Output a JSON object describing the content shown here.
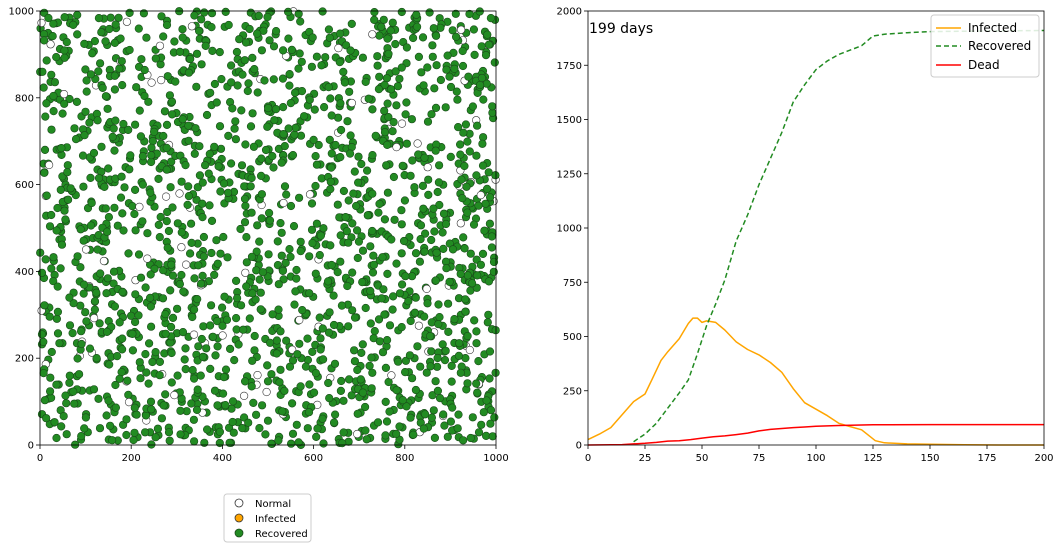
{
  "chart_data": [
    {
      "type": "scatter",
      "xlim": [
        0,
        1000
      ],
      "ylim": [
        0,
        1000
      ],
      "xticks": [
        0,
        200,
        400,
        600,
        800,
        1000
      ],
      "yticks": [
        0,
        200,
        400,
        600,
        800,
        1000
      ],
      "grid": false,
      "legend_position": "below-center",
      "point_count_estimate": 2000,
      "recovered_fraction_estimate": 0.95,
      "series": [
        {
          "name": "Normal",
          "fill": "#ffffff",
          "edge": "#333333"
        },
        {
          "name": "Infected",
          "fill": "#ffa500",
          "edge": "#333333"
        },
        {
          "name": "Recovered",
          "fill": "#228b22",
          "edge": "#1a4a1a"
        }
      ]
    },
    {
      "type": "line",
      "annotation": "199 days",
      "xlim": [
        0,
        200
      ],
      "ylim": [
        0,
        2000
      ],
      "xticks": [
        0,
        25,
        50,
        75,
        100,
        125,
        150,
        175,
        200
      ],
      "yticks": [
        0,
        250,
        500,
        750,
        1000,
        1250,
        1500,
        1750,
        2000
      ],
      "grid": false,
      "legend_position": "top-right",
      "series": [
        {
          "name": "Infected",
          "color": "#ffa500",
          "dash": "solid",
          "points": [
            [
              0,
              25
            ],
            [
              5,
              50
            ],
            [
              10,
              80
            ],
            [
              15,
              140
            ],
            [
              20,
              200
            ],
            [
              25,
              235
            ],
            [
              28,
              300
            ],
            [
              32,
              390
            ],
            [
              35,
              430
            ],
            [
              40,
              490
            ],
            [
              44,
              560
            ],
            [
              46,
              585
            ],
            [
              48,
              585
            ],
            [
              50,
              565
            ],
            [
              52,
              572
            ],
            [
              56,
              565
            ],
            [
              60,
              530
            ],
            [
              65,
              475
            ],
            [
              70,
              440
            ],
            [
              75,
              415
            ],
            [
              80,
              380
            ],
            [
              85,
              335
            ],
            [
              90,
              260
            ],
            [
              95,
              195
            ],
            [
              100,
              165
            ],
            [
              105,
              135
            ],
            [
              110,
              100
            ],
            [
              115,
              85
            ],
            [
              120,
              70
            ],
            [
              123,
              45
            ],
            [
              126,
              20
            ],
            [
              130,
              10
            ],
            [
              140,
              5
            ],
            [
              150,
              3
            ],
            [
              165,
              1
            ],
            [
              180,
              0
            ],
            [
              200,
              0
            ]
          ]
        },
        {
          "name": "Recovered",
          "color": "#228b22",
          "dash": "dashed",
          "points": [
            [
              20,
              15
            ],
            [
              25,
              50
            ],
            [
              30,
              100
            ],
            [
              35,
              170
            ],
            [
              40,
              240
            ],
            [
              44,
              300
            ],
            [
              48,
              420
            ],
            [
              52,
              550
            ],
            [
              56,
              650
            ],
            [
              60,
              760
            ],
            [
              65,
              940
            ],
            [
              70,
              1060
            ],
            [
              75,
              1200
            ],
            [
              80,
              1320
            ],
            [
              85,
              1440
            ],
            [
              90,
              1580
            ],
            [
              95,
              1660
            ],
            [
              100,
              1730
            ],
            [
              105,
              1770
            ],
            [
              110,
              1800
            ],
            [
              115,
              1820
            ],
            [
              120,
              1840
            ],
            [
              125,
              1885
            ],
            [
              130,
              1893
            ],
            [
              140,
              1900
            ],
            [
              150,
              1905
            ],
            [
              175,
              1908
            ],
            [
              200,
              1910
            ]
          ]
        },
        {
          "name": "Dead",
          "color": "#ff0000",
          "dash": "solid",
          "points": [
            [
              0,
              0
            ],
            [
              15,
              2
            ],
            [
              20,
              5
            ],
            [
              25,
              8
            ],
            [
              30,
              12
            ],
            [
              35,
              18
            ],
            [
              40,
              20
            ],
            [
              45,
              25
            ],
            [
              50,
              32
            ],
            [
              55,
              38
            ],
            [
              60,
              42
            ],
            [
              65,
              48
            ],
            [
              70,
              55
            ],
            [
              75,
              65
            ],
            [
              80,
              72
            ],
            [
              85,
              76
            ],
            [
              90,
              80
            ],
            [
              95,
              83
            ],
            [
              100,
              86
            ],
            [
              105,
              88
            ],
            [
              110,
              90
            ],
            [
              115,
              91
            ],
            [
              120,
              92
            ],
            [
              125,
              93
            ],
            [
              150,
              94
            ],
            [
              200,
              94
            ]
          ]
        }
      ]
    }
  ]
}
